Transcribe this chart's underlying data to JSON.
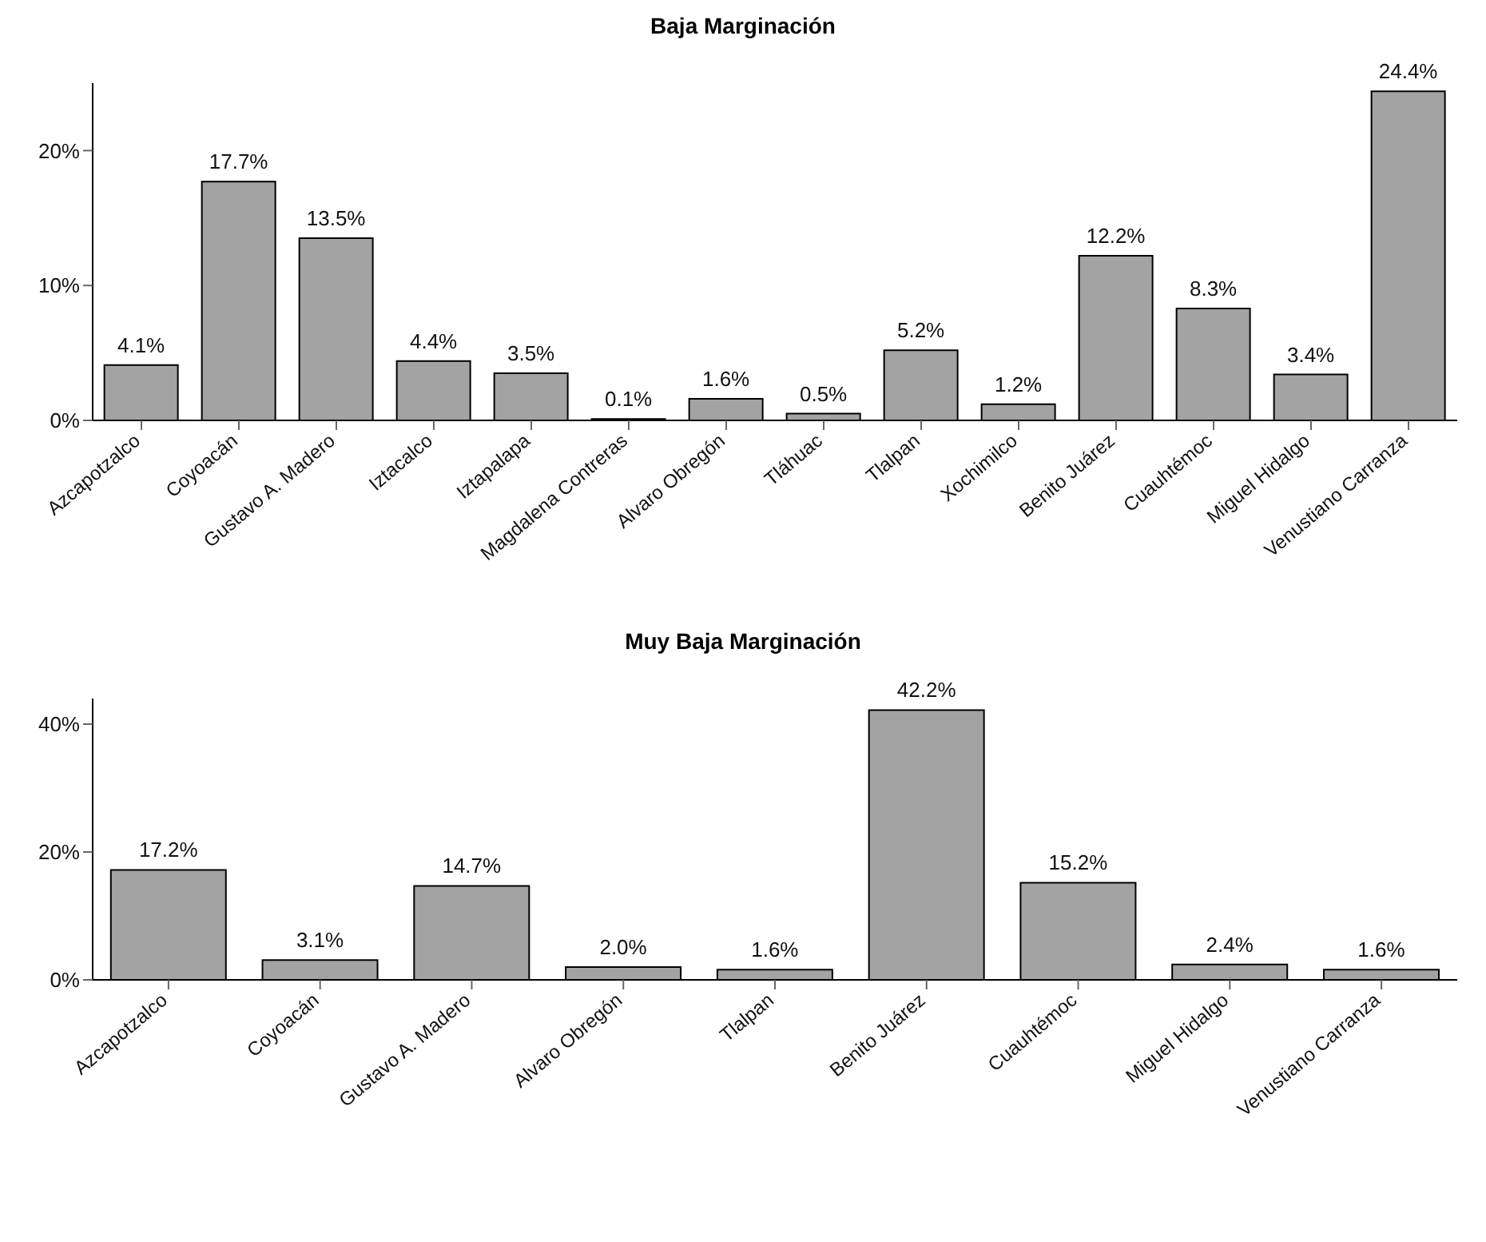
{
  "chart_data": [
    {
      "type": "bar",
      "title": "Baja Marginación",
      "categories": [
        "Azcapotzalco",
        "Coyoacán",
        "Gustavo A. Madero",
        "Iztacalco",
        "Iztapalapa",
        "Magdalena Contreras",
        "Alvaro Obregón",
        "Tláhuac",
        "Tlalpan",
        "Xochimilco",
        "Benito Juárez",
        "Cuauhtémoc",
        "Miguel Hidalgo",
        "Venustiano Carranza"
      ],
      "values": [
        4.1,
        17.7,
        13.5,
        4.4,
        3.5,
        0.1,
        1.6,
        0.5,
        5.2,
        1.2,
        12.2,
        8.3,
        3.4,
        24.4
      ],
      "value_labels": [
        "4.1%",
        "17.7%",
        "13.5%",
        "4.4%",
        "3.5%",
        "0.1%",
        "1.6%",
        "0.5%",
        "5.2%",
        "1.2%",
        "12.2%",
        "8.3%",
        "3.4%",
        "24.4%"
      ],
      "color": "#a3a3a3",
      "ylim": [
        0,
        25
      ],
      "yticks": [
        {
          "value": 0,
          "label": "0%"
        },
        {
          "value": 10,
          "label": "10%"
        },
        {
          "value": 20,
          "label": "20%"
        }
      ],
      "legend": false,
      "grid": false
    },
    {
      "type": "bar",
      "title": "Muy Baja Marginación",
      "categories": [
        "Azcapotzalco",
        "Coyoacán",
        "Gustavo A. Madero",
        "Alvaro Obregón",
        "Tlalpan",
        "Benito Juárez",
        "Cuauhtémoc",
        "Miguel Hidalgo",
        "Venustiano Carranza"
      ],
      "values": [
        17.2,
        3.1,
        14.7,
        2.0,
        1.6,
        42.2,
        15.2,
        2.4,
        1.6
      ],
      "value_labels": [
        "17.2%",
        "3.1%",
        "14.7%",
        "2.0%",
        "1.6%",
        "42.2%",
        "15.2%",
        "2.4%",
        "1.6%"
      ],
      "color": "#a3a3a3",
      "ylim": [
        0,
        44
      ],
      "yticks": [
        {
          "value": 0,
          "label": "0%"
        },
        {
          "value": 20,
          "label": "20%"
        },
        {
          "value": 40,
          "label": "40%"
        }
      ],
      "legend": false,
      "grid": false
    }
  ]
}
